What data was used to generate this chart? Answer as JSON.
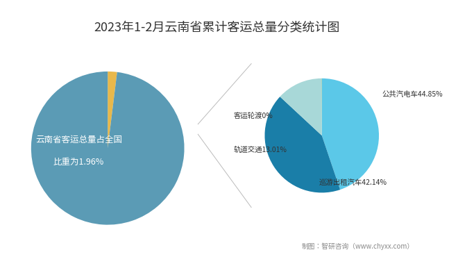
{
  "title": "2023年1-2月云南省累计客运总量分类统计图",
  "title_fontsize": 13,
  "background_color": "#ffffff",
  "left_pie": {
    "values": [
      1.96,
      98.04
    ],
    "colors": [
      "#E8B84B",
      "#5B9BB5"
    ],
    "label_line1": "云南省客运总量占全国",
    "label_line2": "比重为1.96%",
    "label_color": "#ffffff",
    "label_fontsize": 9
  },
  "right_pie": {
    "values": [
      44.85,
      42.14,
      13.01,
      0.01
    ],
    "colors": [
      "#5BC8E8",
      "#1A7EA8",
      "#A8D8D8",
      "#90C090"
    ],
    "labels": [
      "公共汽电车44.85%",
      "巡游出租汽车42.14%",
      "轨道交通13.01%",
      "客运轮渡0%"
    ],
    "label_fontsize": 8
  },
  "connection_color": "#bbbbbb",
  "footer": "制图：智研咨询（www.chyxx.com）",
  "footer_fontsize": 7
}
